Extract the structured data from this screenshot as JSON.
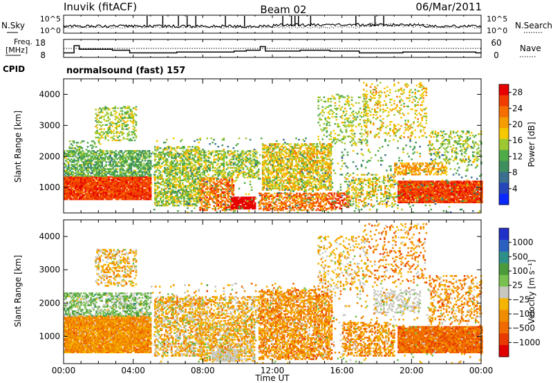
{
  "header": {
    "station": "Inuvik (fitACF)",
    "beam": "Beam 02",
    "date": "06/Mar/2011"
  },
  "panels": {
    "nsky_label": "N.Sky",
    "nsearch_label": "N.Search",
    "noise_ticks": [
      "10^5",
      "10^0"
    ],
    "freq_label_line1": "Freq.",
    "freq_label_line2": "[MHz]",
    "freq_ticks": [
      "18",
      "8"
    ],
    "nave_label": "Nave",
    "nave_ticks": [
      "60",
      "0"
    ],
    "cpid_label": "CPID",
    "cpid_value": "normalsound (fast) 157"
  },
  "colors": {
    "power": [
      "#0a28ff",
      "#2545b8",
      "#3a6f8f",
      "#3f8f5e",
      "#4faa48",
      "#9ec832",
      "#f5c800",
      "#f59c00",
      "#f56e00",
      "#f03c00",
      "#e60000"
    ],
    "velocity": [
      "#2030c8",
      "#2a60c0",
      "#2e8f8a",
      "#4a9a3a",
      "#78c050",
      "#c8c8c0",
      "#f5b400",
      "#f08c00",
      "#f06a00",
      "#e83a00",
      "#e00000"
    ]
  },
  "chart_data": [
    {
      "type": "heatmap",
      "title": "Power",
      "xlabel": "",
      "ylabel": "Slant Range [km]",
      "xlim": [
        "00:00",
        "24:00"
      ],
      "ylim": [
        180,
        4500
      ],
      "yticks": [
        "1000",
        "2000",
        "3000",
        "4000"
      ],
      "colorbar": {
        "label": "Power [dB]",
        "ticks": [
          "4",
          "8",
          "12",
          "16",
          "20",
          "24",
          "28"
        ],
        "range": [
          0,
          30
        ]
      }
    },
    {
      "type": "heatmap",
      "title": "Velocity",
      "xlabel": "Time UT",
      "ylabel": "Slant Range [km]",
      "xticks": [
        "00:00",
        "04:00",
        "08:00",
        "12:00",
        "16:00",
        "20:00",
        "00:00"
      ],
      "ylim": [
        180,
        4500
      ],
      "yticks": [
        "1000",
        "2000",
        "3000",
        "4000"
      ],
      "colorbar": {
        "label": "Velocity [m s⁻¹]",
        "ticks": [
          "1000",
          "500",
          "100",
          "25",
          "−25",
          "−100",
          "−500",
          "−1000"
        ]
      }
    }
  ],
  "frequency_series": {
    "hours": [
      0,
      0.6,
      0.9,
      2.8,
      3.8,
      6.5,
      9.8,
      10.5,
      11.3,
      11.6,
      13.6,
      15.3,
      17.0,
      19.5,
      23.7,
      24
    ],
    "mhz": [
      10.5,
      14.5,
      12.5,
      12.0,
      10.5,
      11.0,
      11.5,
      12.0,
      14.0,
      11.5,
      12.0,
      11.5,
      10.5,
      11.0,
      10.5,
      10.5
    ]
  }
}
